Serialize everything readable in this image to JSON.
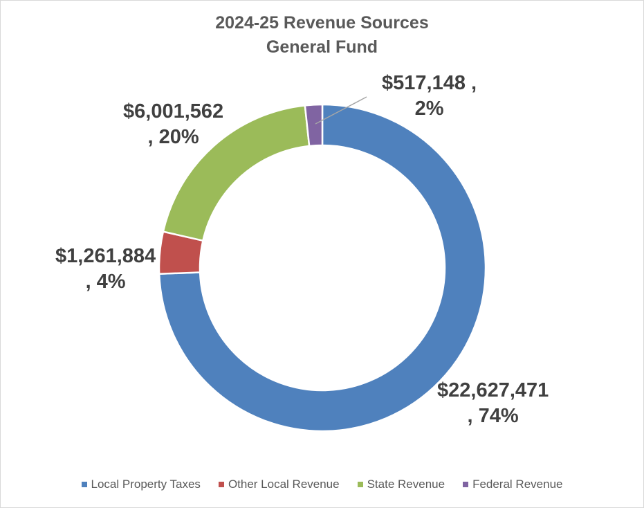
{
  "chart_data": {
    "type": "pie",
    "style": "donut",
    "title": "2024-25 Revenue Sources",
    "subtitle": "General Fund",
    "legend_position": "bottom",
    "slices": [
      {
        "name": "Local Property Taxes",
        "value": 22627471,
        "percent": 74,
        "color": "#4f81bd",
        "label_value": "$22,627,471",
        "label_percent": ", 74%"
      },
      {
        "name": "Other Local Revenue",
        "value": 1261884,
        "percent": 4,
        "color": "#c0504d",
        "label_value": "$1,261,884",
        "label_percent": ", 4%"
      },
      {
        "name": "State Revenue",
        "value": 6001562,
        "percent": 20,
        "color": "#9bbb59",
        "label_value": "$6,001,562",
        "label_percent": ", 20%"
      },
      {
        "name": "Federal Revenue",
        "value": 517148,
        "percent": 2,
        "color": "#8064a2",
        "label_value": "$517,148 ,",
        "label_percent": "2%"
      }
    ]
  }
}
